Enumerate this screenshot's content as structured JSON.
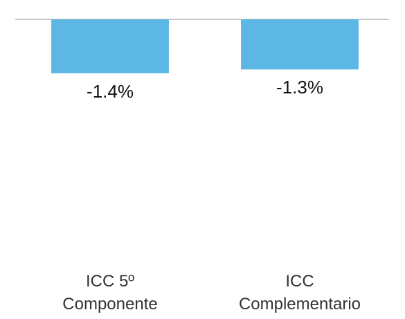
{
  "chart_data": {
    "type": "bar",
    "categories": [
      "ICC 5º Componente",
      "ICC Complementario"
    ],
    "values": [
      -1.4,
      -1.3
    ],
    "value_labels": [
      "-1.4%",
      "-1.3%"
    ],
    "color": "#5db7e5",
    "ylim": [
      -6,
      0
    ]
  }
}
